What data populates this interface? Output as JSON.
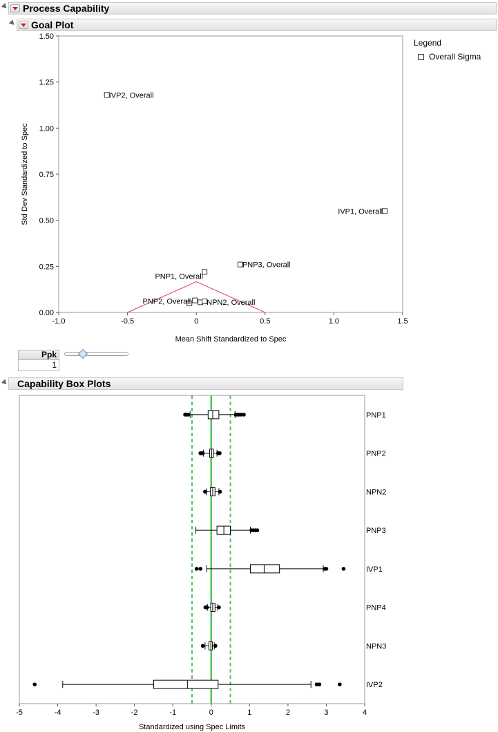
{
  "report": {
    "title": "Process Capability"
  },
  "goal_plot": {
    "title": "Goal Plot",
    "legend_title": "Legend",
    "legend_item": "Overall Sigma",
    "ppk_label": "Ppk",
    "ppk_value": "1"
  },
  "box_plots": {
    "title": "Capability Box Plots"
  },
  "colors": {
    "goal_triangle": "#d9414e",
    "spec_center": "#53c25b",
    "spec_limits": "#53c25b"
  },
  "chart_data": [
    {
      "type": "scatter",
      "title": "Goal Plot",
      "xlabel": "Mean Shift Standardized to Spec",
      "ylabel": "Std Dev Standardized to Spec",
      "xlim": [
        -1.0,
        1.5
      ],
      "ylim": [
        0.0,
        1.5
      ],
      "xticks": [
        "-1.0",
        "-0.5",
        "0",
        "0.5",
        "1.0",
        "1.5"
      ],
      "yticks": [
        "0.00",
        "0.25",
        "0.50",
        "0.75",
        "1.00",
        "1.25",
        "1.50"
      ],
      "goal_triangle": [
        [
          -0.5,
          0.0
        ],
        [
          0.0,
          0.1667
        ],
        [
          0.5,
          0.0
        ]
      ],
      "series": [
        {
          "name": "Overall Sigma",
          "points": [
            {
              "label": "IVP2, Overall",
              "x": -0.65,
              "y": 1.18
            },
            {
              "label": "IVP1, Overall",
              "x": 1.37,
              "y": 0.55
            },
            {
              "label": "PNP3, Overall",
              "x": 0.32,
              "y": 0.26
            },
            {
              "label": "PNP1, Overall",
              "x": 0.06,
              "y": 0.22
            },
            {
              "label": "PNP2, Overall",
              "x": -0.05,
              "y": 0.05
            },
            {
              "label": "",
              "x": -0.01,
              "y": 0.065
            },
            {
              "label": "",
              "x": 0.03,
              "y": 0.055
            },
            {
              "label": "NPN2, Overall",
              "x": 0.06,
              "y": 0.06
            }
          ]
        }
      ]
    },
    {
      "type": "boxplot",
      "title": "Capability Box Plots",
      "xlabel": "Standardized using Spec Limits",
      "xlim": [
        -5,
        4
      ],
      "xticks": [
        "-5",
        "-4",
        "-3",
        "-2",
        "-1",
        "0",
        "1",
        "2",
        "3",
        "4"
      ],
      "spec_lines": {
        "center": 0,
        "lsl": -0.5,
        "usl": 0.5
      },
      "categories": [
        "PNP1",
        "PNP2",
        "NPN2",
        "PNP3",
        "IVP1",
        "PNP4",
        "NPN3",
        "IVP2"
      ],
      "boxes": [
        {
          "name": "PNP1",
          "whisker_low": -0.55,
          "q1": -0.08,
          "median": 0.04,
          "q3": 0.2,
          "whisker_high": 0.62,
          "outliers": [
            -0.68,
            -0.66,
            -0.63,
            -0.6,
            0.64,
            0.68,
            0.72,
            0.78,
            0.85
          ]
        },
        {
          "name": "PNP2",
          "whisker_low": -0.2,
          "q1": -0.04,
          "median": 0.01,
          "q3": 0.06,
          "whisker_high": 0.15,
          "outliers": [
            -0.28,
            -0.26,
            -0.24,
            -0.22,
            0.18,
            0.2,
            0.22
          ]
        },
        {
          "name": "NPN2",
          "whisker_low": -0.12,
          "q1": -0.02,
          "median": 0.04,
          "q3": 0.1,
          "whisker_high": 0.2,
          "outliers": [
            -0.16,
            0.23
          ]
        },
        {
          "name": "PNP3",
          "whisker_low": -0.4,
          "q1": 0.15,
          "median": 0.33,
          "q3": 0.5,
          "whisker_high": 1.02,
          "outliers": [
            1.05,
            1.1,
            1.15,
            1.2
          ]
        },
        {
          "name": "IVP1",
          "whisker_low": -0.12,
          "q1": 1.02,
          "median": 1.38,
          "q3": 1.78,
          "whisker_high": 2.92,
          "outliers": [
            -0.38,
            -0.28,
            2.96,
            3.0,
            3.45
          ]
        },
        {
          "name": "PNP4",
          "whisker_low": -0.1,
          "q1": -0.01,
          "median": 0.04,
          "q3": 0.1,
          "whisker_high": 0.17,
          "outliers": [
            -0.15,
            -0.13,
            -0.11,
            0.2
          ]
        },
        {
          "name": "NPN3",
          "whisker_low": -0.16,
          "q1": -0.06,
          "median": -0.01,
          "q3": 0.03,
          "whisker_high": 0.08,
          "outliers": [
            -0.22,
            0.11
          ]
        },
        {
          "name": "IVP2",
          "whisker_low": -3.87,
          "q1": -1.5,
          "median": -0.62,
          "q3": 0.18,
          "whisker_high": 2.6,
          "outliers": [
            -4.6,
            2.75,
            2.82,
            3.35
          ]
        }
      ]
    }
  ]
}
